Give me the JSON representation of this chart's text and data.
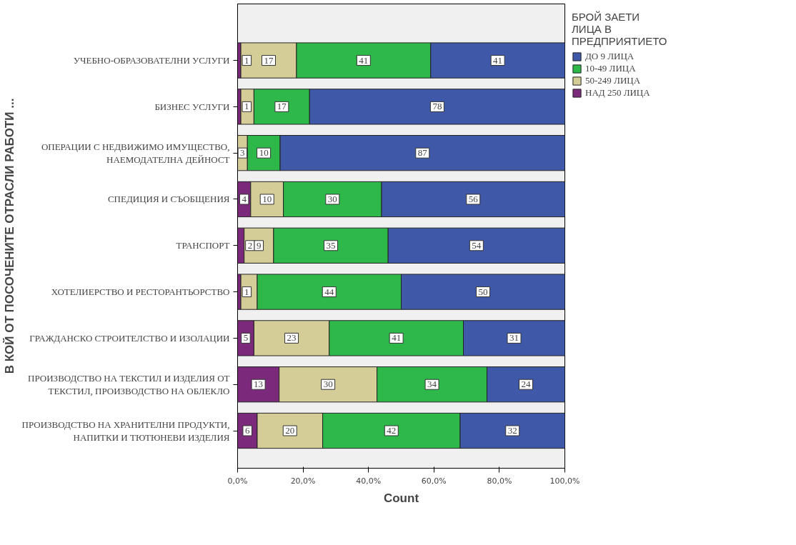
{
  "chart_data": {
    "type": "bar",
    "orientation": "horizontal",
    "stacked": true,
    "xlabel": "Count",
    "ylabel": "В КОЙ ОТ ПОСОЧЕНИТЕ ОТРАСЛИ РАБОТИ ...",
    "legend_title": "БРОЙ ЗАЕТИ\nЛИЦА В\nПРЕДПРИЯТИЕТО",
    "categories": [
      "УЧЕБНО-ОБРАЗОВАТЕЛНИ УСЛУГИ",
      "БИЗНЕС УСЛУГИ",
      "ОПЕРАЦИИ С НЕДВИЖИМО ИМУЩЕСТВО,\nНАЕМОДАТЕЛНА ДЕЙНОСТ",
      "СПЕДИЦИЯ И СЪОБЩЕНИЯ",
      "ТРАНСПОРТ",
      "ХОТЕЛИЕРСТВО И РЕСТОРАНТЬОРСТВО",
      "ГРАЖДАНСКО СТРОИТЕЛСТВО И ИЗОЛАЦИИ",
      "ПРОИЗВОДСТВО НА ТЕКСТИЛ И ИЗДЕЛИЯ ОТ\nТЕКСТИЛ, ПРОИЗВОДСТВО НА ОБЛЕКЛО",
      "ПРОИЗВОДСТВО НА ХРАНИТЕЛНИ ПРОДУКТИ,\nНАПИТКИ И ТЮТЮНЕВИ ИЗДЕЛИЯ"
    ],
    "series": [
      {
        "name": "НАД 250 ЛИЦА",
        "color": "#7b2a7b",
        "values": [
          1,
          1,
          null,
          4,
          2,
          1,
          5,
          12.7,
          6
        ],
        "value_labels": [
          "1",
          "1",
          null,
          "4",
          "2",
          "1",
          "5",
          "13",
          "6"
        ]
      },
      {
        "name": "50-249 ЛИЦА",
        "color": "#d4cd98",
        "values": [
          17,
          4,
          3,
          10,
          9,
          5,
          23,
          29.9,
          20
        ],
        "value_labels": [
          "17",
          null,
          "3",
          "10",
          "9",
          null,
          "23",
          "30",
          "20"
        ]
      },
      {
        "name": "10-49 ЛИЦА",
        "color": "#2eb84a",
        "values": [
          41,
          17,
          10,
          30,
          35,
          44,
          41,
          33.6,
          42
        ],
        "value_labels": [
          "41",
          "17",
          "10",
          "30",
          "35",
          "44",
          "41",
          "34",
          "42"
        ]
      },
      {
        "name": "ДО 9 ЛИЦА",
        "color": "#3f58a8",
        "values": [
          41,
          78,
          87,
          56,
          54,
          50,
          31,
          23.8,
          32
        ],
        "value_labels": [
          "41",
          "78",
          "87",
          "56",
          "54",
          "50",
          "31",
          "24",
          "32"
        ]
      }
    ],
    "xlim": [
      0,
      100
    ],
    "xticks": [
      {
        "value": 0,
        "label": "0,0%"
      },
      {
        "value": 20,
        "label": "20,0%"
      },
      {
        "value": 40,
        "label": "40,0%"
      },
      {
        "value": 60,
        "label": "60,0%"
      },
      {
        "value": 80,
        "label": "80,0%"
      },
      {
        "value": 100,
        "label": "100,0%"
      }
    ],
    "grid": false,
    "legend": "right"
  }
}
